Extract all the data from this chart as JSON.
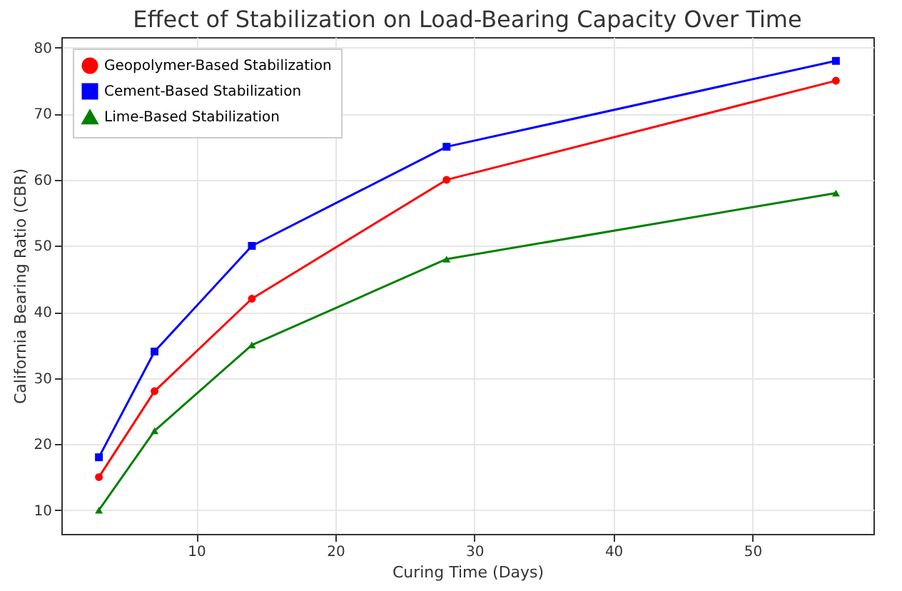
{
  "chart_data": {
    "type": "line",
    "title": "Effect of Stabilization on Load-Bearing Capacity Over Time",
    "xlabel": "Curing Time (Days)",
    "ylabel": "California Bearing Ratio (CBR)",
    "x": [
      3,
      7,
      14,
      28,
      56
    ],
    "series": [
      {
        "name": "Geopolymer-Based Stabilization",
        "color": "#ff0000",
        "marker": "circle",
        "values": [
          15,
          28,
          42,
          60,
          75
        ]
      },
      {
        "name": "Cement-Based Stabilization",
        "color": "#0000ff",
        "marker": "square",
        "values": [
          18,
          34,
          50,
          65,
          78
        ]
      },
      {
        "name": "Lime-Based Stabilization",
        "color": "#008000",
        "marker": "triangle",
        "values": [
          10,
          22,
          35,
          48,
          58
        ]
      }
    ],
    "xlim": [
      0.3,
      58.7
    ],
    "xticks": [
      10,
      20,
      30,
      40,
      50
    ],
    "ylim": [
      6.4,
      81.6
    ],
    "yticks": [
      10,
      20,
      30,
      40,
      50,
      60,
      70,
      80
    ],
    "grid": true,
    "legend": "top left",
    "line_style": "solid"
  }
}
